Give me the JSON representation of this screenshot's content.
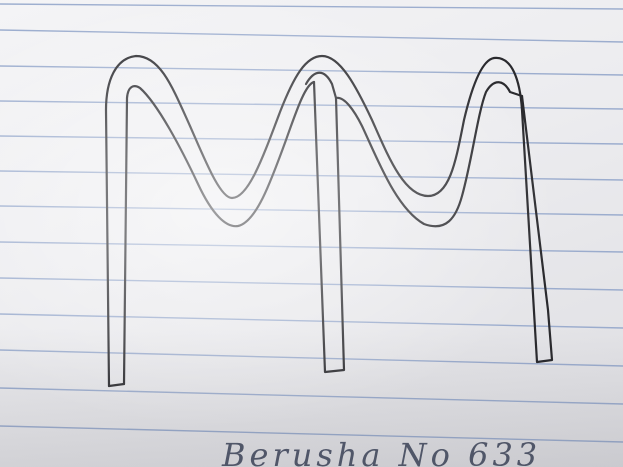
{
  "photo": {
    "subject": "notebook-paper-with-ink-drawing",
    "caption_text": "Berusha No 633",
    "colors": {
      "paper": "#efeff2",
      "ruled_line": "#8fa3c9",
      "ink": "#2a2a2e",
      "caption_ink": "#3a4258"
    }
  }
}
